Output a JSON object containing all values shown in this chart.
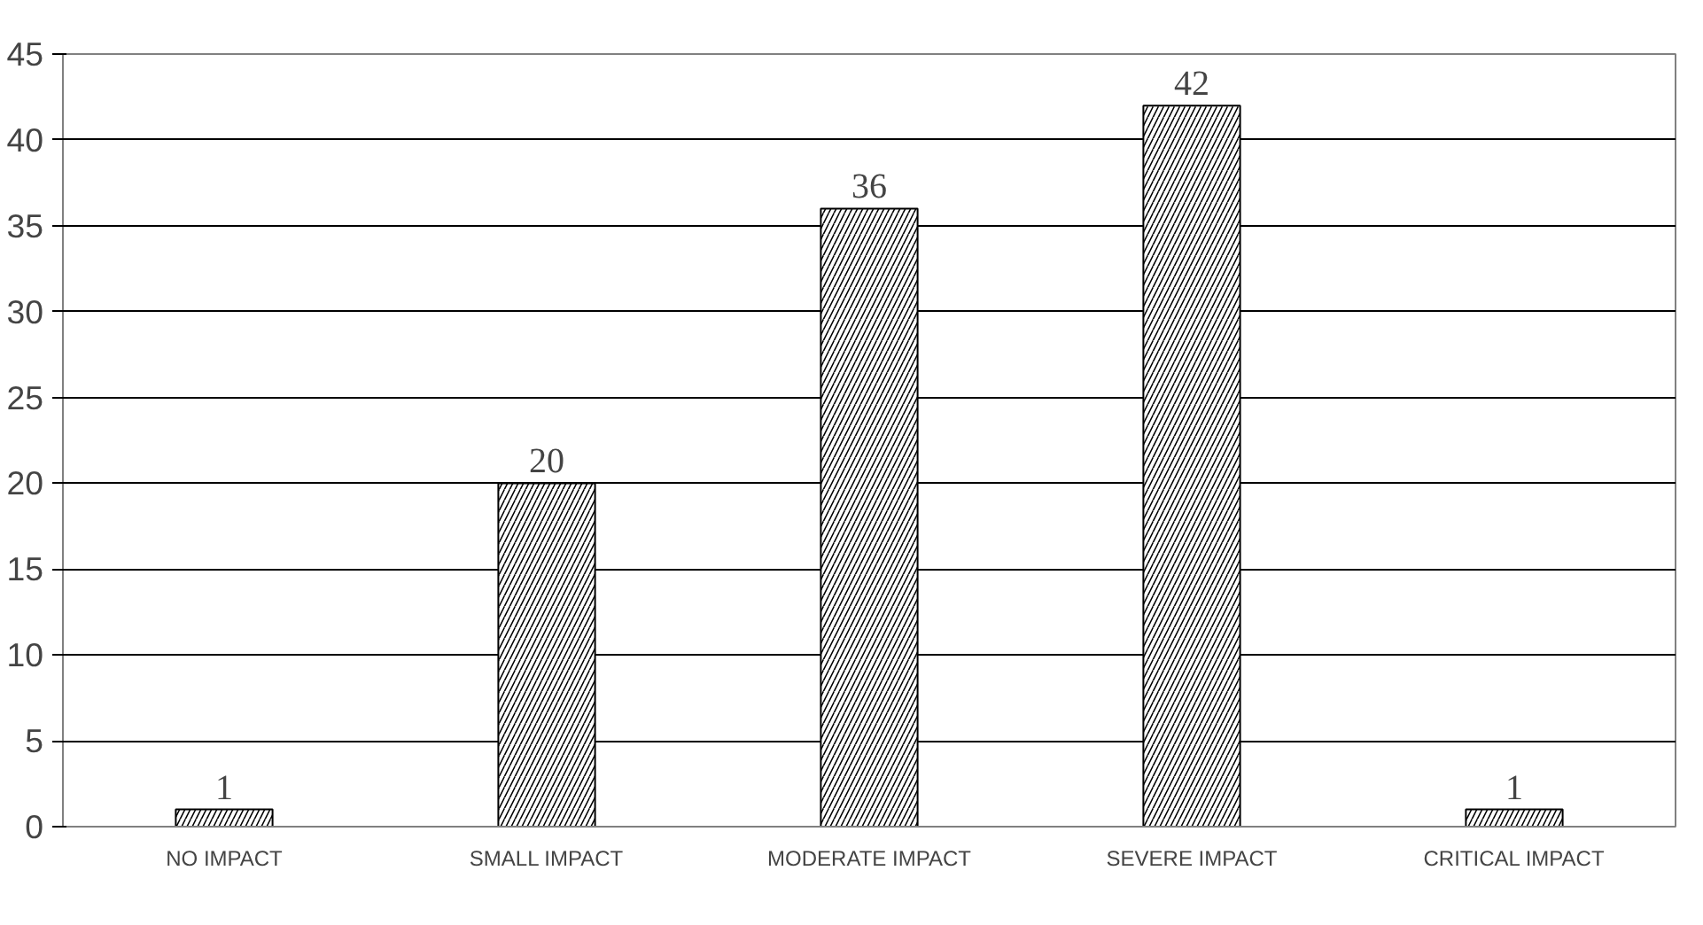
{
  "chart_data": {
    "type": "bar",
    "categories": [
      "NO IMPACT",
      "SMALL IMPACT",
      "MODERATE IMPACT",
      "SEVERE IMPACT",
      "CRITICAL IMPACT"
    ],
    "values": [
      1,
      20,
      36,
      42,
      1
    ],
    "color": "#000000",
    "ylim": [
      0,
      45
    ],
    "yticks": [
      0,
      5,
      10,
      15,
      20,
      25,
      30,
      35,
      40,
      45
    ],
    "grid": "y",
    "data_labels": true
  }
}
